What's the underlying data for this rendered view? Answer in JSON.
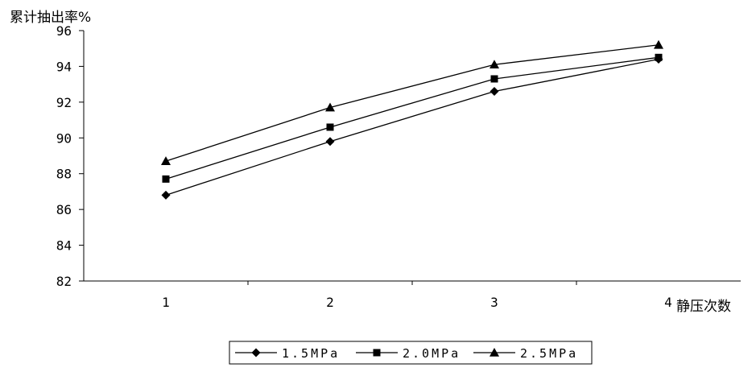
{
  "chart_data": {
    "type": "line",
    "ylabel": "累计抽出率%",
    "xlabel": "静压次数",
    "categories": [
      "1",
      "2",
      "3",
      "4"
    ],
    "ylim": [
      82,
      96
    ],
    "yticks": [
      "82",
      "84",
      "86",
      "88",
      "90",
      "92",
      "94",
      "96"
    ],
    "grid": false,
    "legend_position": "bottom",
    "series": [
      {
        "name": "1.5MPa",
        "marker": "diamond",
        "values": [
          86.8,
          89.8,
          92.6,
          94.4
        ]
      },
      {
        "name": "2.0MPa",
        "marker": "square",
        "values": [
          87.7,
          90.6,
          93.3,
          94.5
        ]
      },
      {
        "name": "2.5MPa",
        "marker": "triangle",
        "values": [
          88.7,
          91.7,
          94.1,
          95.2
        ]
      }
    ],
    "colors": {
      "line": "#000000",
      "axis": "#000000"
    }
  }
}
